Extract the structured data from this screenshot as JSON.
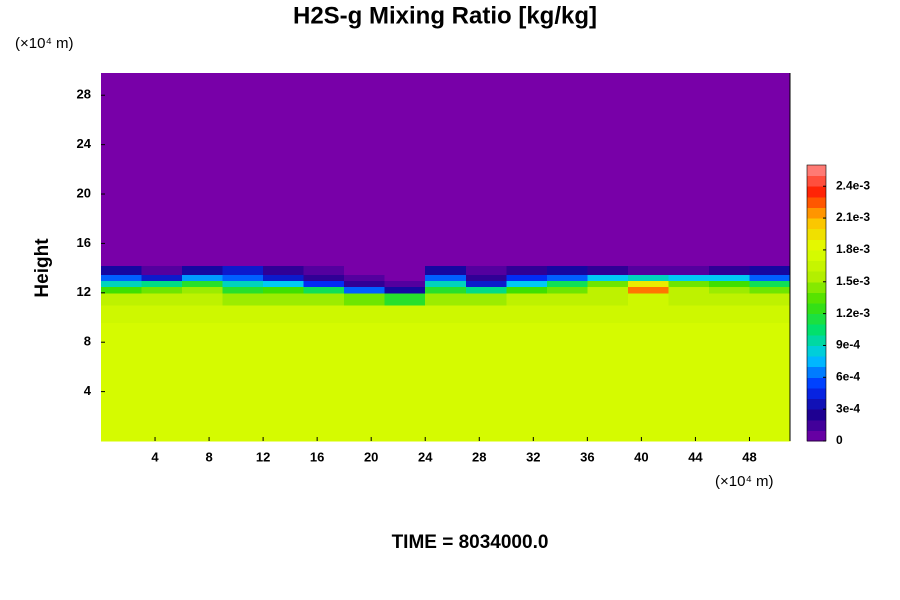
{
  "chart_data": {
    "type": "heatmap",
    "title": "H2S-g Mixing Ratio [kg/kg]",
    "ylabel": "Height",
    "x_unit": "(×10⁴ m)",
    "y_unit": "(×10⁴ m)",
    "footer": "TIME = 8034000.0",
    "xlim": [
      0,
      51
    ],
    "xticks": [
      4,
      8,
      12,
      16,
      20,
      24,
      28,
      32,
      36,
      40,
      44,
      48
    ],
    "ylim": [
      0,
      29.8
    ],
    "yticks": [
      4,
      8,
      12,
      16,
      20,
      24,
      28
    ],
    "x_edges": [
      0,
      3,
      6,
      9,
      12,
      15,
      18,
      21,
      24,
      27,
      30,
      33,
      36,
      39,
      42,
      45,
      48,
      51
    ],
    "y_edges": [
      0,
      9.6,
      11,
      12,
      12.5,
      13,
      13.5,
      14.2,
      29.8
    ],
    "z": [
      [
        0.00175,
        0.00175,
        0.00175,
        0.00175,
        0.00175,
        0.00175,
        0.00175,
        0.00175,
        0.00175,
        0.00175,
        0.00175,
        0.00175,
        0.00175,
        0.00175,
        0.00175,
        0.00175,
        0.00175
      ],
      [
        0.0017,
        0.0017,
        0.0017,
        0.0017,
        0.0017,
        0.0017,
        0.0017,
        0.0017,
        0.0017,
        0.0017,
        0.0017,
        0.0017,
        0.0017,
        0.0017,
        0.0017,
        0.0017,
        0.0017
      ],
      [
        0.0016,
        0.0016,
        0.0016,
        0.0015,
        0.0015,
        0.0015,
        0.0014,
        0.0012,
        0.0015,
        0.0015,
        0.0016,
        0.0016,
        0.0016,
        0.0017,
        0.0016,
        0.0016,
        0.0016
      ],
      [
        0.0013,
        0.0014,
        0.0015,
        0.0012,
        0.0013,
        0.0011,
        0.0006,
        0.0003,
        0.0012,
        0.001,
        0.0013,
        0.0014,
        0.0016,
        0.0022,
        0.0016,
        0.0015,
        0.0014
      ],
      [
        0.0009,
        0.001,
        0.0012,
        0.0009,
        0.0008,
        0.0005,
        0.0002,
        0.0001,
        0.0009,
        0.0004,
        0.0008,
        0.0011,
        0.0014,
        0.0019,
        0.0014,
        0.0013,
        0.0011
      ],
      [
        0.0006,
        0.0004,
        0.0007,
        0.0006,
        0.0004,
        0.0002,
        0.0001,
        0,
        0.0006,
        0.0002,
        0.0005,
        0.0006,
        0.0008,
        0.0009,
        0.0008,
        0.0008,
        0.0006
      ],
      [
        0.0003,
        0.0001,
        0.0003,
        0.0004,
        0.0002,
        0.0001,
        0,
        0,
        0.0003,
        0.0001,
        0.0002,
        0.0003,
        0.0002,
        0.0001,
        0.0001,
        0.0002,
        0.0003
      ],
      [
        0,
        0,
        0,
        0,
        0,
        0,
        0,
        0,
        0,
        0,
        0,
        0,
        0,
        0,
        0,
        0,
        0
      ]
    ],
    "clim": [
      0,
      0.0026
    ],
    "cticks": [
      0,
      {
        "value": 0.0003,
        "label": "3e-4"
      },
      {
        "value": 0.0006,
        "label": "6e-4"
      },
      {
        "value": 0.0009,
        "label": "9e-4"
      },
      {
        "value": 0.0012,
        "label": "1.2e-3"
      },
      {
        "value": 0.0015,
        "label": "1.5e-3"
      },
      {
        "value": 0.0018,
        "label": "1.8e-3"
      },
      {
        "value": 0.0021,
        "label": "2.1e-3"
      },
      {
        "value": 0.0024,
        "label": "2.4e-3"
      }
    ],
    "colormap": [
      "#7800a8",
      "#1a0090",
      "#0030ff",
      "#00c8ff",
      "#00e070",
      "#40e000",
      "#b8f000",
      "#e0ff00",
      "#ffc000",
      "#ff2000",
      "#ff9090"
    ]
  }
}
